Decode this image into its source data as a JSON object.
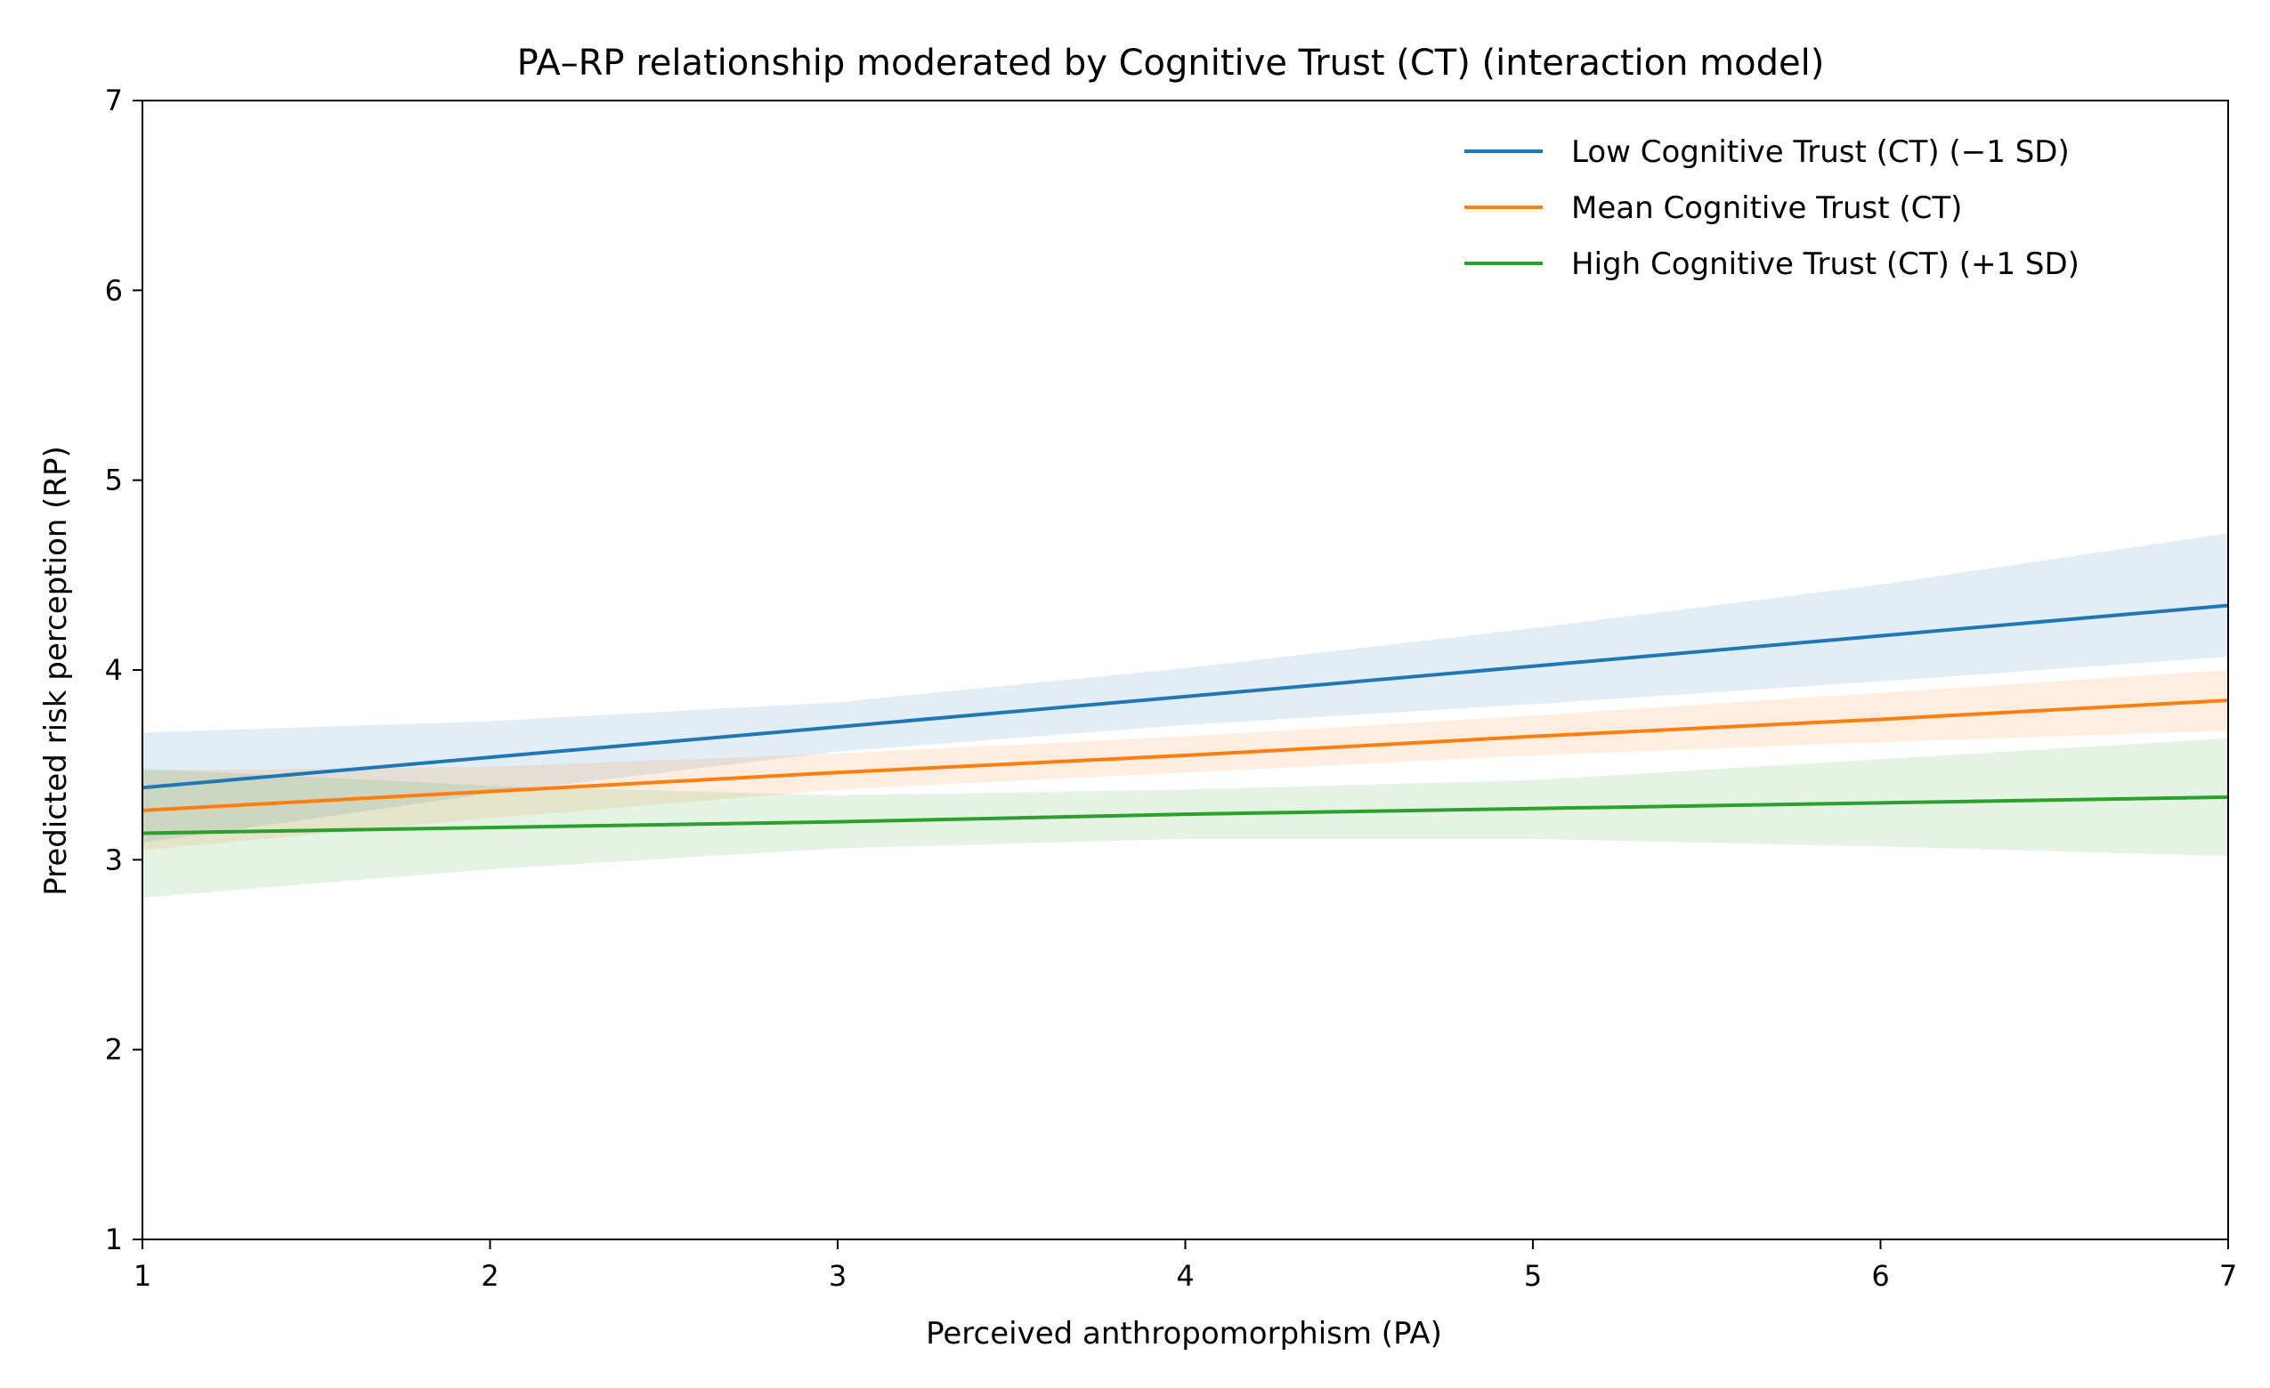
{
  "chart_data": {
    "type": "line",
    "title": "PA–RP relationship moderated by Cognitive Trust (CT) (interaction model)",
    "xlabel": "Perceived anthropomorphism (PA)",
    "ylabel": "Predicted risk perception (RP)",
    "xlim": [
      1,
      7
    ],
    "ylim": [
      1,
      7
    ],
    "xticks": [
      1,
      2,
      3,
      4,
      5,
      6,
      7
    ],
    "yticks": [
      1,
      2,
      3,
      4,
      5,
      6,
      7
    ],
    "grid": false,
    "legend_position": "top-right",
    "x": [
      1,
      2,
      3,
      4,
      5,
      6,
      7
    ],
    "series": [
      {
        "name": "Low Cognitive Trust (CT) (−1 SD)",
        "color": "#1f77b4",
        "values": [
          3.38,
          3.54,
          3.7,
          3.86,
          4.02,
          4.18,
          4.34
        ],
        "ci_lower": [
          3.09,
          3.35,
          3.57,
          3.71,
          3.82,
          3.94,
          4.07
        ],
        "ci_upper": [
          3.67,
          3.73,
          3.83,
          4.01,
          4.22,
          4.45,
          4.72
        ]
      },
      {
        "name": "Mean Cognitive Trust (CT)",
        "color": "#ff7f0e",
        "values": [
          3.26,
          3.36,
          3.46,
          3.55,
          3.65,
          3.74,
          3.84
        ],
        "ci_lower": [
          3.05,
          3.22,
          3.37,
          3.46,
          3.55,
          3.62,
          3.68
        ],
        "ci_upper": [
          3.47,
          3.49,
          3.56,
          3.65,
          3.76,
          3.88,
          4.0
        ]
      },
      {
        "name": "High Cognitive Trust (CT) (+1 SD)",
        "color": "#2ca02c",
        "values": [
          3.14,
          3.17,
          3.2,
          3.24,
          3.27,
          3.3,
          3.33
        ],
        "ci_lower": [
          2.8,
          2.95,
          3.06,
          3.11,
          3.11,
          3.07,
          3.02
        ],
        "ci_upper": [
          3.48,
          3.39,
          3.34,
          3.37,
          3.42,
          3.53,
          3.64
        ]
      }
    ]
  }
}
